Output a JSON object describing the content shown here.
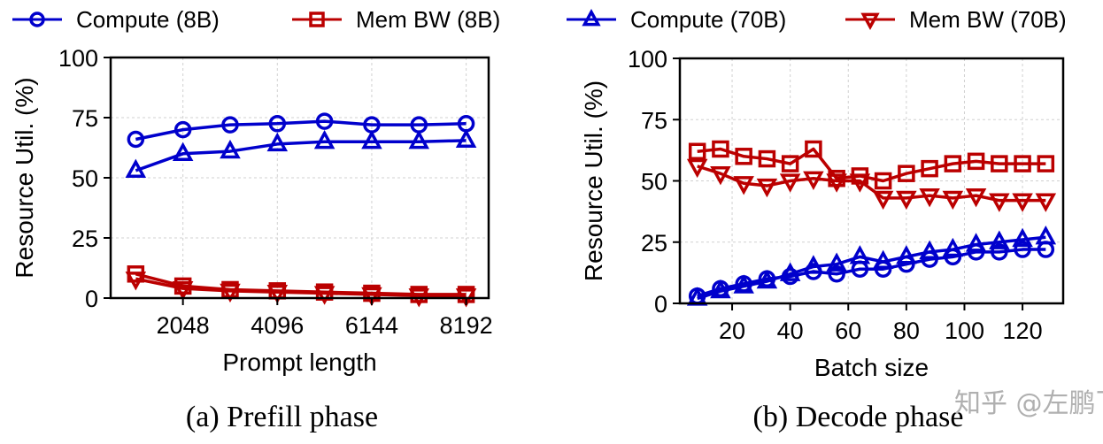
{
  "legend": [
    {
      "name": "Compute (8B)",
      "color": "#0000cc",
      "marker": "circle"
    },
    {
      "name": "Mem BW (8B)",
      "color": "#bb0000",
      "marker": "square"
    },
    {
      "name": "Compute (70B)",
      "color": "#0000cc",
      "marker": "triangle-up"
    },
    {
      "name": "Mem BW (70B)",
      "color": "#bb0000",
      "marker": "triangle-down"
    }
  ],
  "watermark": "知乎 @左鹏飞",
  "chart_data": [
    {
      "type": "line",
      "caption": "(a)  Prefill phase",
      "xlabel": "Prompt length",
      "ylabel": "Resource Util. (%)",
      "xlim": [
        480,
        8680
      ],
      "ylim": [
        0,
        100
      ],
      "xticks": [
        2048,
        4096,
        6144,
        8192
      ],
      "yticks": [
        0,
        25,
        50,
        75,
        100
      ],
      "grid": true,
      "x": [
        1024,
        2048,
        3072,
        4096,
        5120,
        6144,
        7168,
        8192
      ],
      "series": [
        {
          "name": "Compute (8B)",
          "values": [
            66,
            70,
            72,
            72.5,
            73.5,
            72,
            72,
            72.5
          ]
        },
        {
          "name": "Mem BW (8B)",
          "values": [
            10,
            5,
            3.5,
            3,
            2.5,
            2,
            1.5,
            1.5
          ]
        },
        {
          "name": "Compute (70B)",
          "values": [
            53,
            60,
            61,
            64,
            65,
            65,
            65,
            65.5
          ]
        },
        {
          "name": "Mem BW (70B)",
          "values": [
            8,
            4,
            3,
            2.5,
            2,
            1.5,
            1,
            1
          ]
        }
      ]
    },
    {
      "type": "line",
      "caption": "(b)  Decode phase",
      "xlabel": "Batch size",
      "ylabel": "Resource Util. (%)",
      "xlim": [
        2,
        134
      ],
      "ylim": [
        0,
        100
      ],
      "xticks": [
        20,
        40,
        60,
        80,
        100,
        120
      ],
      "yticks": [
        0,
        25,
        50,
        75,
        100
      ],
      "grid": true,
      "x": [
        8,
        16,
        24,
        32,
        40,
        48,
        56,
        64,
        72,
        80,
        88,
        96,
        104,
        112,
        120,
        128
      ],
      "series": [
        {
          "name": "Compute (8B)",
          "values": [
            3,
            6,
            8,
            10,
            11,
            13,
            12,
            14,
            14,
            16,
            18,
            19,
            21,
            21,
            22,
            22
          ]
        },
        {
          "name": "Mem BW (8B)",
          "values": [
            62,
            63,
            60,
            59,
            57,
            63,
            51,
            52,
            50,
            53,
            55,
            57,
            58,
            57,
            57,
            57
          ]
        },
        {
          "name": "Compute (70B)",
          "values": [
            2,
            5,
            7,
            9,
            12,
            15,
            16,
            19,
            17,
            19,
            21,
            22,
            24,
            25,
            26,
            27
          ]
        },
        {
          "name": "Mem BW (70B)",
          "values": [
            56,
            53,
            49,
            48,
            50,
            51,
            50,
            50,
            43,
            43,
            44,
            43,
            44,
            42,
            42,
            42
          ]
        }
      ]
    }
  ]
}
